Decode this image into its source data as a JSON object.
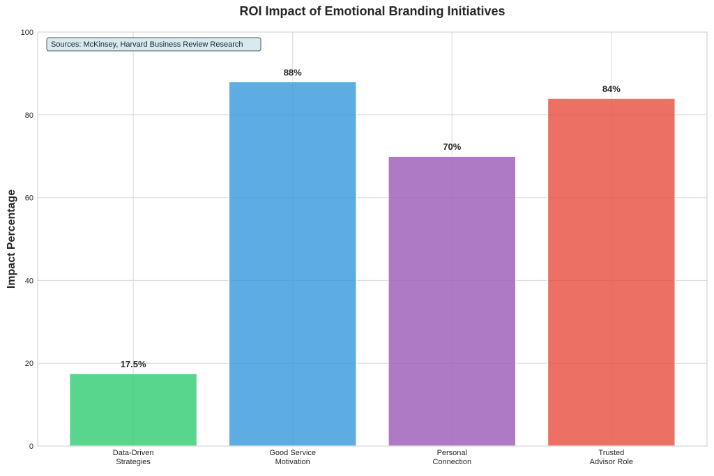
{
  "chart_data": {
    "type": "bar",
    "title": "ROI Impact of Emotional Branding Initiatives",
    "xlabel": "",
    "ylabel": "Impact Percentage",
    "categories": [
      [
        "Data-Driven",
        "Strategies"
      ],
      [
        "Good Service",
        "Motivation"
      ],
      [
        "Personal",
        "Connection"
      ],
      [
        "Trusted",
        "Advisor Role"
      ]
    ],
    "values": [
      17.5,
      88,
      70,
      84
    ],
    "value_labels": [
      "17.5%",
      "88%",
      "70%",
      "84%"
    ],
    "colors": [
      "#2ecc71",
      "#3498db",
      "#9b59b6",
      "#e74c3c"
    ],
    "ylim": [
      0,
      100
    ],
    "yticks": [
      0,
      20,
      40,
      60,
      80,
      100
    ],
    "grid": true,
    "annotation": "Sources: McKinsey, Harvard Business Review Research",
    "annotation_box_color": "#d6eaf0"
  }
}
